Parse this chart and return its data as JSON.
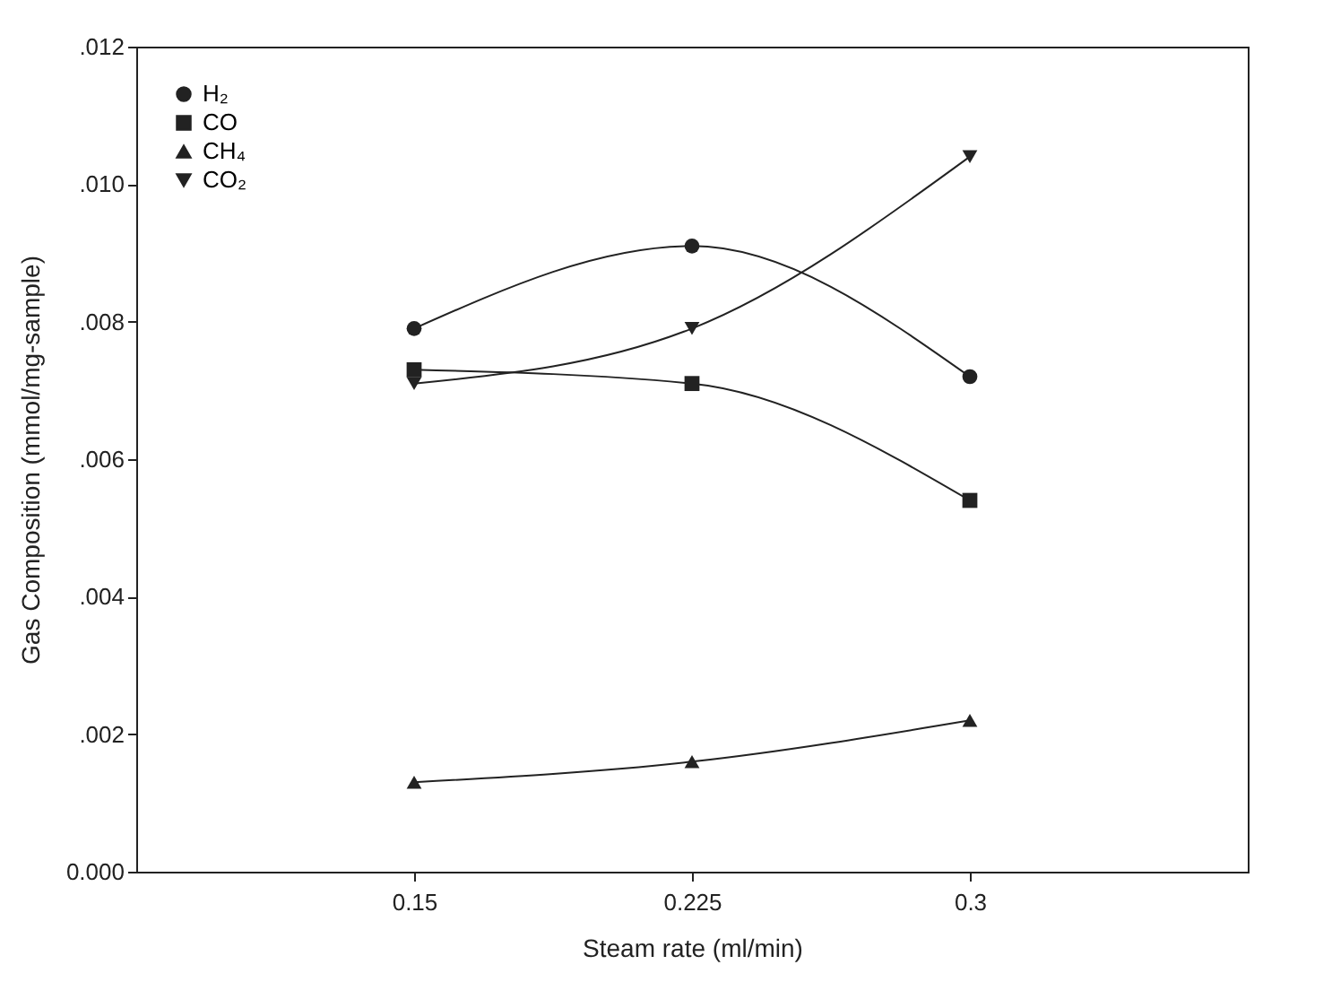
{
  "chart_data": {
    "type": "line",
    "xlabel": "Steam rate (ml/min)",
    "ylabel": "Gas Composition (mmol/mg-sample)",
    "x": [
      0.15,
      0.225,
      0.3
    ],
    "xlim": [
      0.075,
      0.375
    ],
    "xticks": [
      0.15,
      0.225,
      0.3
    ],
    "ylim": [
      0,
      0.012
    ],
    "yticks": [
      {
        "value": 0,
        "label": "0.000"
      },
      {
        "value": 0.002,
        "label": ".002"
      },
      {
        "value": 0.004,
        "label": ".004"
      },
      {
        "value": 0.006,
        "label": ".006"
      },
      {
        "value": 0.008,
        "label": ".008"
      },
      {
        "value": 0.01,
        "label": ".010"
      },
      {
        "value": 0.012,
        "label": ".012"
      }
    ],
    "grid": false,
    "legend": "top left",
    "line_style": "solid",
    "series": [
      {
        "name": "H₂",
        "color": "#222222",
        "marker": "circle",
        "values": [
          0.0079,
          0.0091,
          0.0072
        ]
      },
      {
        "name": "CO",
        "color": "#222222",
        "marker": "square",
        "values": [
          0.0073,
          0.0071,
          0.0054
        ]
      },
      {
        "name": "CH₄",
        "color": "#222222",
        "marker": "triangle",
        "values": [
          0.0013,
          0.0016,
          0.0022
        ]
      },
      {
        "name": "CO₂",
        "color": "#222222",
        "marker": "triangle-down",
        "values": [
          0.0071,
          0.0079,
          0.0104
        ]
      }
    ]
  }
}
